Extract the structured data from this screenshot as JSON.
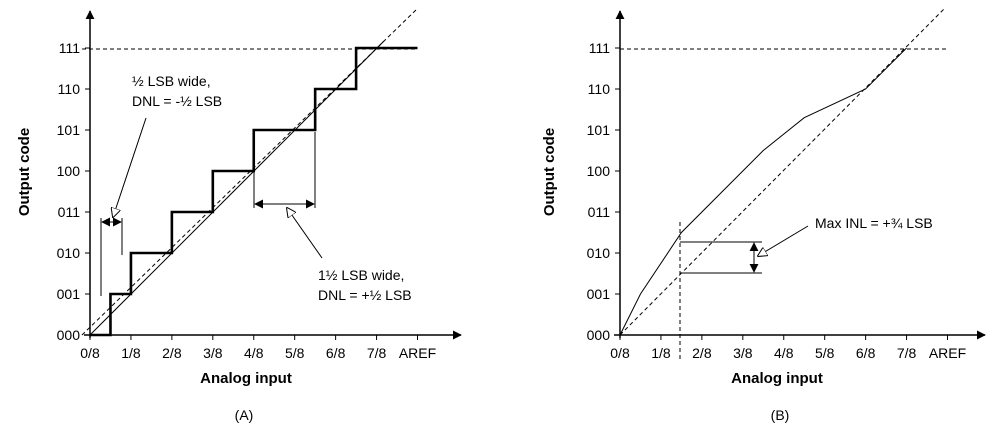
{
  "panel_a": {
    "y_ticks": [
      "000",
      "001",
      "010",
      "011",
      "100",
      "101",
      "110",
      "111"
    ],
    "x_ticks": [
      "0/8",
      "1/8",
      "2/8",
      "3/8",
      "4/8",
      "5/8",
      "6/8",
      "7/8",
      "AREF"
    ],
    "x_label": "Analog input",
    "y_label": "Output code",
    "annotation_narrow_line1": "½ LSB wide,",
    "annotation_narrow_line2": "DNL = -½ LSB",
    "annotation_wide_line1": "1½ LSB wide,",
    "annotation_wide_line2": "DNL = +½ LSB",
    "caption": "(A)",
    "staircase_transitions": [
      0.0625,
      0.125,
      0.25,
      0.375,
      0.5,
      0.6875,
      0.8125
    ],
    "staircase_end_x": 1.0
  },
  "panel_b": {
    "y_ticks": [
      "000",
      "001",
      "010",
      "011",
      "100",
      "101",
      "110",
      "111"
    ],
    "x_ticks": [
      "0/8",
      "1/8",
      "2/8",
      "3/8",
      "4/8",
      "5/8",
      "6/8",
      "7/8",
      "AREF"
    ],
    "x_label": "Analog input",
    "y_label": "Output code",
    "annotation_inl": "Max INL = +¾ LSB",
    "caption": "(B)",
    "transfer_curve": [
      [
        0,
        0
      ],
      [
        0.0625,
        1
      ],
      [
        0.1875,
        2.5
      ],
      [
        0.3125,
        3.5
      ],
      [
        0.4375,
        4.5
      ],
      [
        0.5625,
        5.3
      ],
      [
        0.75,
        6.0
      ],
      [
        0.875,
        7.0
      ]
    ],
    "inl_marker_x": 0.1875
  }
}
